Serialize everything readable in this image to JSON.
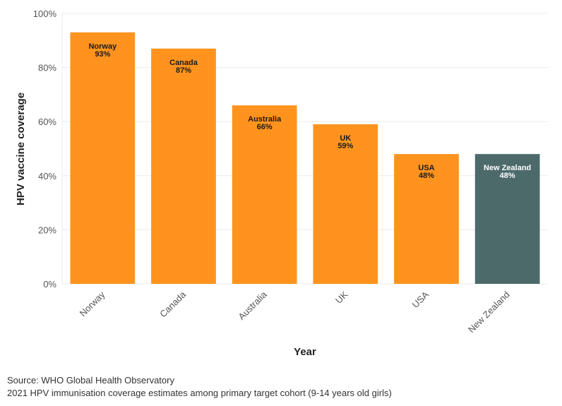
{
  "chart_data": {
    "type": "bar",
    "categories": [
      "Norway",
      "Canada",
      "Australia",
      "UK",
      "USA",
      "New Zealand"
    ],
    "values": [
      93,
      87,
      66,
      59,
      48,
      48
    ],
    "value_labels": [
      "93%",
      "87%",
      "66%",
      "59%",
      "48%",
      "48%"
    ],
    "highlight": "New Zealand",
    "colors": {
      "default": "#FF931E",
      "highlight": "#4D6A6B",
      "label_default": "#1a1a1a",
      "label_highlight": "#ffffff",
      "grid": "#ebebeb"
    },
    "title": "",
    "xlabel": "Year",
    "ylabel": "HPV vaccine coverage",
    "ylim": [
      0,
      100
    ],
    "yticks": [
      0,
      20,
      40,
      60,
      80,
      100
    ],
    "ytick_labels": [
      "0%",
      "20%",
      "40%",
      "60%",
      "80%",
      "100%"
    ],
    "grid": true,
    "legend": "none"
  },
  "footer": {
    "source": "Source: WHO Global Health Observatory",
    "note": "2021 HPV immunisation coverage estimates among primary target cohort (9-14 years old girls)"
  }
}
